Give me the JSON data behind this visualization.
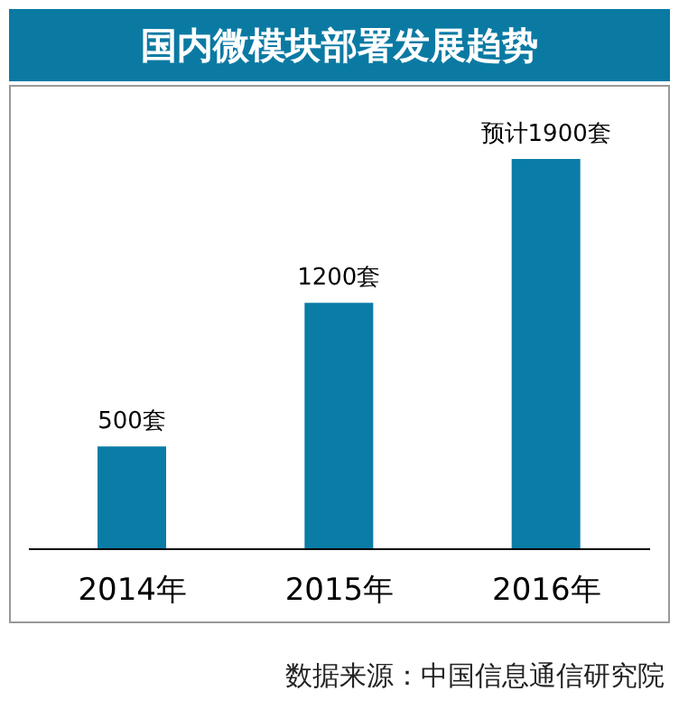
{
  "chart_data": {
    "type": "bar",
    "title": "国内微模块部署发展趋势",
    "categories": [
      "2014年",
      "2015年",
      "2016年"
    ],
    "values": [
      500,
      1200,
      1900
    ],
    "value_labels": [
      "500套",
      "1200套",
      "预计1900套"
    ],
    "color": "#0a7ca6",
    "annotations": [
      "数据来源：中国信息通信研究院"
    ]
  }
}
